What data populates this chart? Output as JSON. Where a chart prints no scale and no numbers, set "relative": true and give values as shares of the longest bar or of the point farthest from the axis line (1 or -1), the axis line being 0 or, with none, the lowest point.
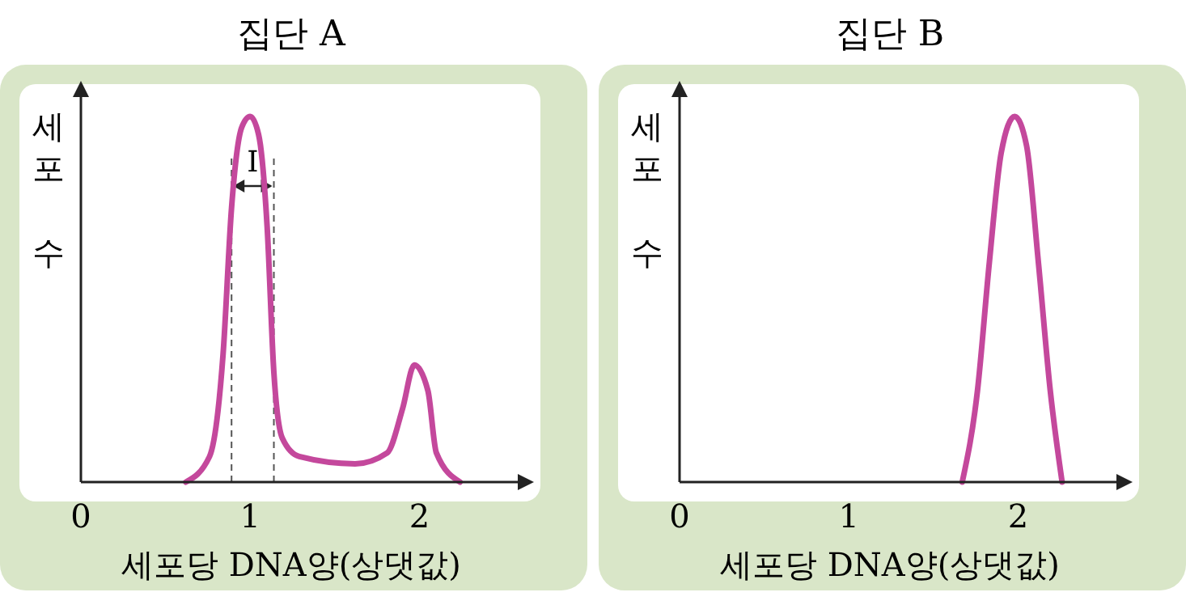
{
  "chart_data": [
    {
      "type": "line",
      "title": "집단 A",
      "xlabel": "세포당 DNA양(상댓값)",
      "ylabel": "세포 수",
      "relative": true,
      "xlim": [
        0,
        2.6
      ],
      "xticks": [
        0,
        1,
        2
      ],
      "marker": "none",
      "x": [
        0.62,
        0.76,
        0.84,
        0.89,
        0.95,
        1.0,
        1.05,
        1.1,
        1.14,
        1.19,
        1.29,
        1.62,
        1.81,
        1.9,
        1.97,
        2.05,
        2.1,
        2.24
      ],
      "series": [
        {
          "color": "#c4489c",
          "values": [
            0,
            0.07,
            0.35,
            0.75,
            0.97,
            1.0,
            0.95,
            0.7,
            0.3,
            0.12,
            0.07,
            0.05,
            0.08,
            0.2,
            0.32,
            0.25,
            0.08,
            0
          ]
        }
      ],
      "ref_lines": [
        {
          "axis": "x",
          "value": 0.89,
          "line_style": "dashed",
          "color": "#555555"
        },
        {
          "axis": "x",
          "value": 1.14,
          "line_style": "dashed",
          "color": "#555555"
        }
      ],
      "annotations": [
        "Ⅰ"
      ]
    },
    {
      "type": "line",
      "title": "집단 B",
      "xlabel": "세포당 DNA양(상댓값)",
      "ylabel": "세포 수",
      "relative": true,
      "xlim": [
        0,
        2.6
      ],
      "xticks": [
        0,
        1,
        2
      ],
      "marker": "none",
      "x": [
        1.67,
        1.76,
        1.83,
        1.9,
        1.98,
        2.05,
        2.12,
        2.19,
        2.26
      ],
      "series": [
        {
          "color": "#c4489c",
          "values": [
            0,
            0.25,
            0.6,
            0.9,
            1.0,
            0.92,
            0.6,
            0.25,
            0
          ]
        }
      ]
    }
  ]
}
